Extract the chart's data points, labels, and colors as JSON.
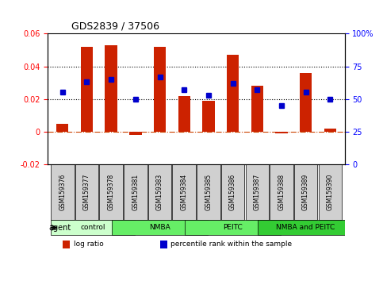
{
  "title": "GDS2839 / 37506",
  "samples": [
    "GSM159376",
    "GSM159377",
    "GSM159378",
    "GSM159381",
    "GSM159383",
    "GSM159384",
    "GSM159385",
    "GSM159386",
    "GSM159387",
    "GSM159388",
    "GSM159389",
    "GSM159390"
  ],
  "log_ratio": [
    0.005,
    0.052,
    0.053,
    -0.002,
    0.052,
    0.022,
    0.019,
    0.047,
    0.028,
    -0.001,
    0.036,
    0.002
  ],
  "percentile_rank": [
    55,
    63,
    65,
    50,
    67,
    57,
    53,
    62,
    57,
    45,
    55,
    50
  ],
  "groups": [
    {
      "label": "control",
      "start": 0,
      "end": 3,
      "color": "#ccffcc"
    },
    {
      "label": "NMBA",
      "start": 3,
      "end": 6,
      "color": "#66dd66"
    },
    {
      "label": "PEITC",
      "start": 6,
      "end": 9,
      "color": "#66dd66"
    },
    {
      "label": "NMBA and PEITC",
      "start": 9,
      "end": 12,
      "color": "#33cc33"
    }
  ],
  "bar_color": "#cc2200",
  "dot_color": "#0000cc",
  "ylim_left": [
    -0.02,
    0.06
  ],
  "ylim_right": [
    0,
    100
  ],
  "yticks_left": [
    -0.02,
    0.0,
    0.02,
    0.04,
    0.06
  ],
  "yticks_right": [
    0,
    25,
    50,
    75,
    100
  ],
  "hlines": [
    0.0,
    0.02,
    0.04
  ],
  "legend_items": [
    {
      "label": "log ratio",
      "color": "#cc2200"
    },
    {
      "label": "percentile rank within the sample",
      "color": "#0000cc"
    }
  ]
}
